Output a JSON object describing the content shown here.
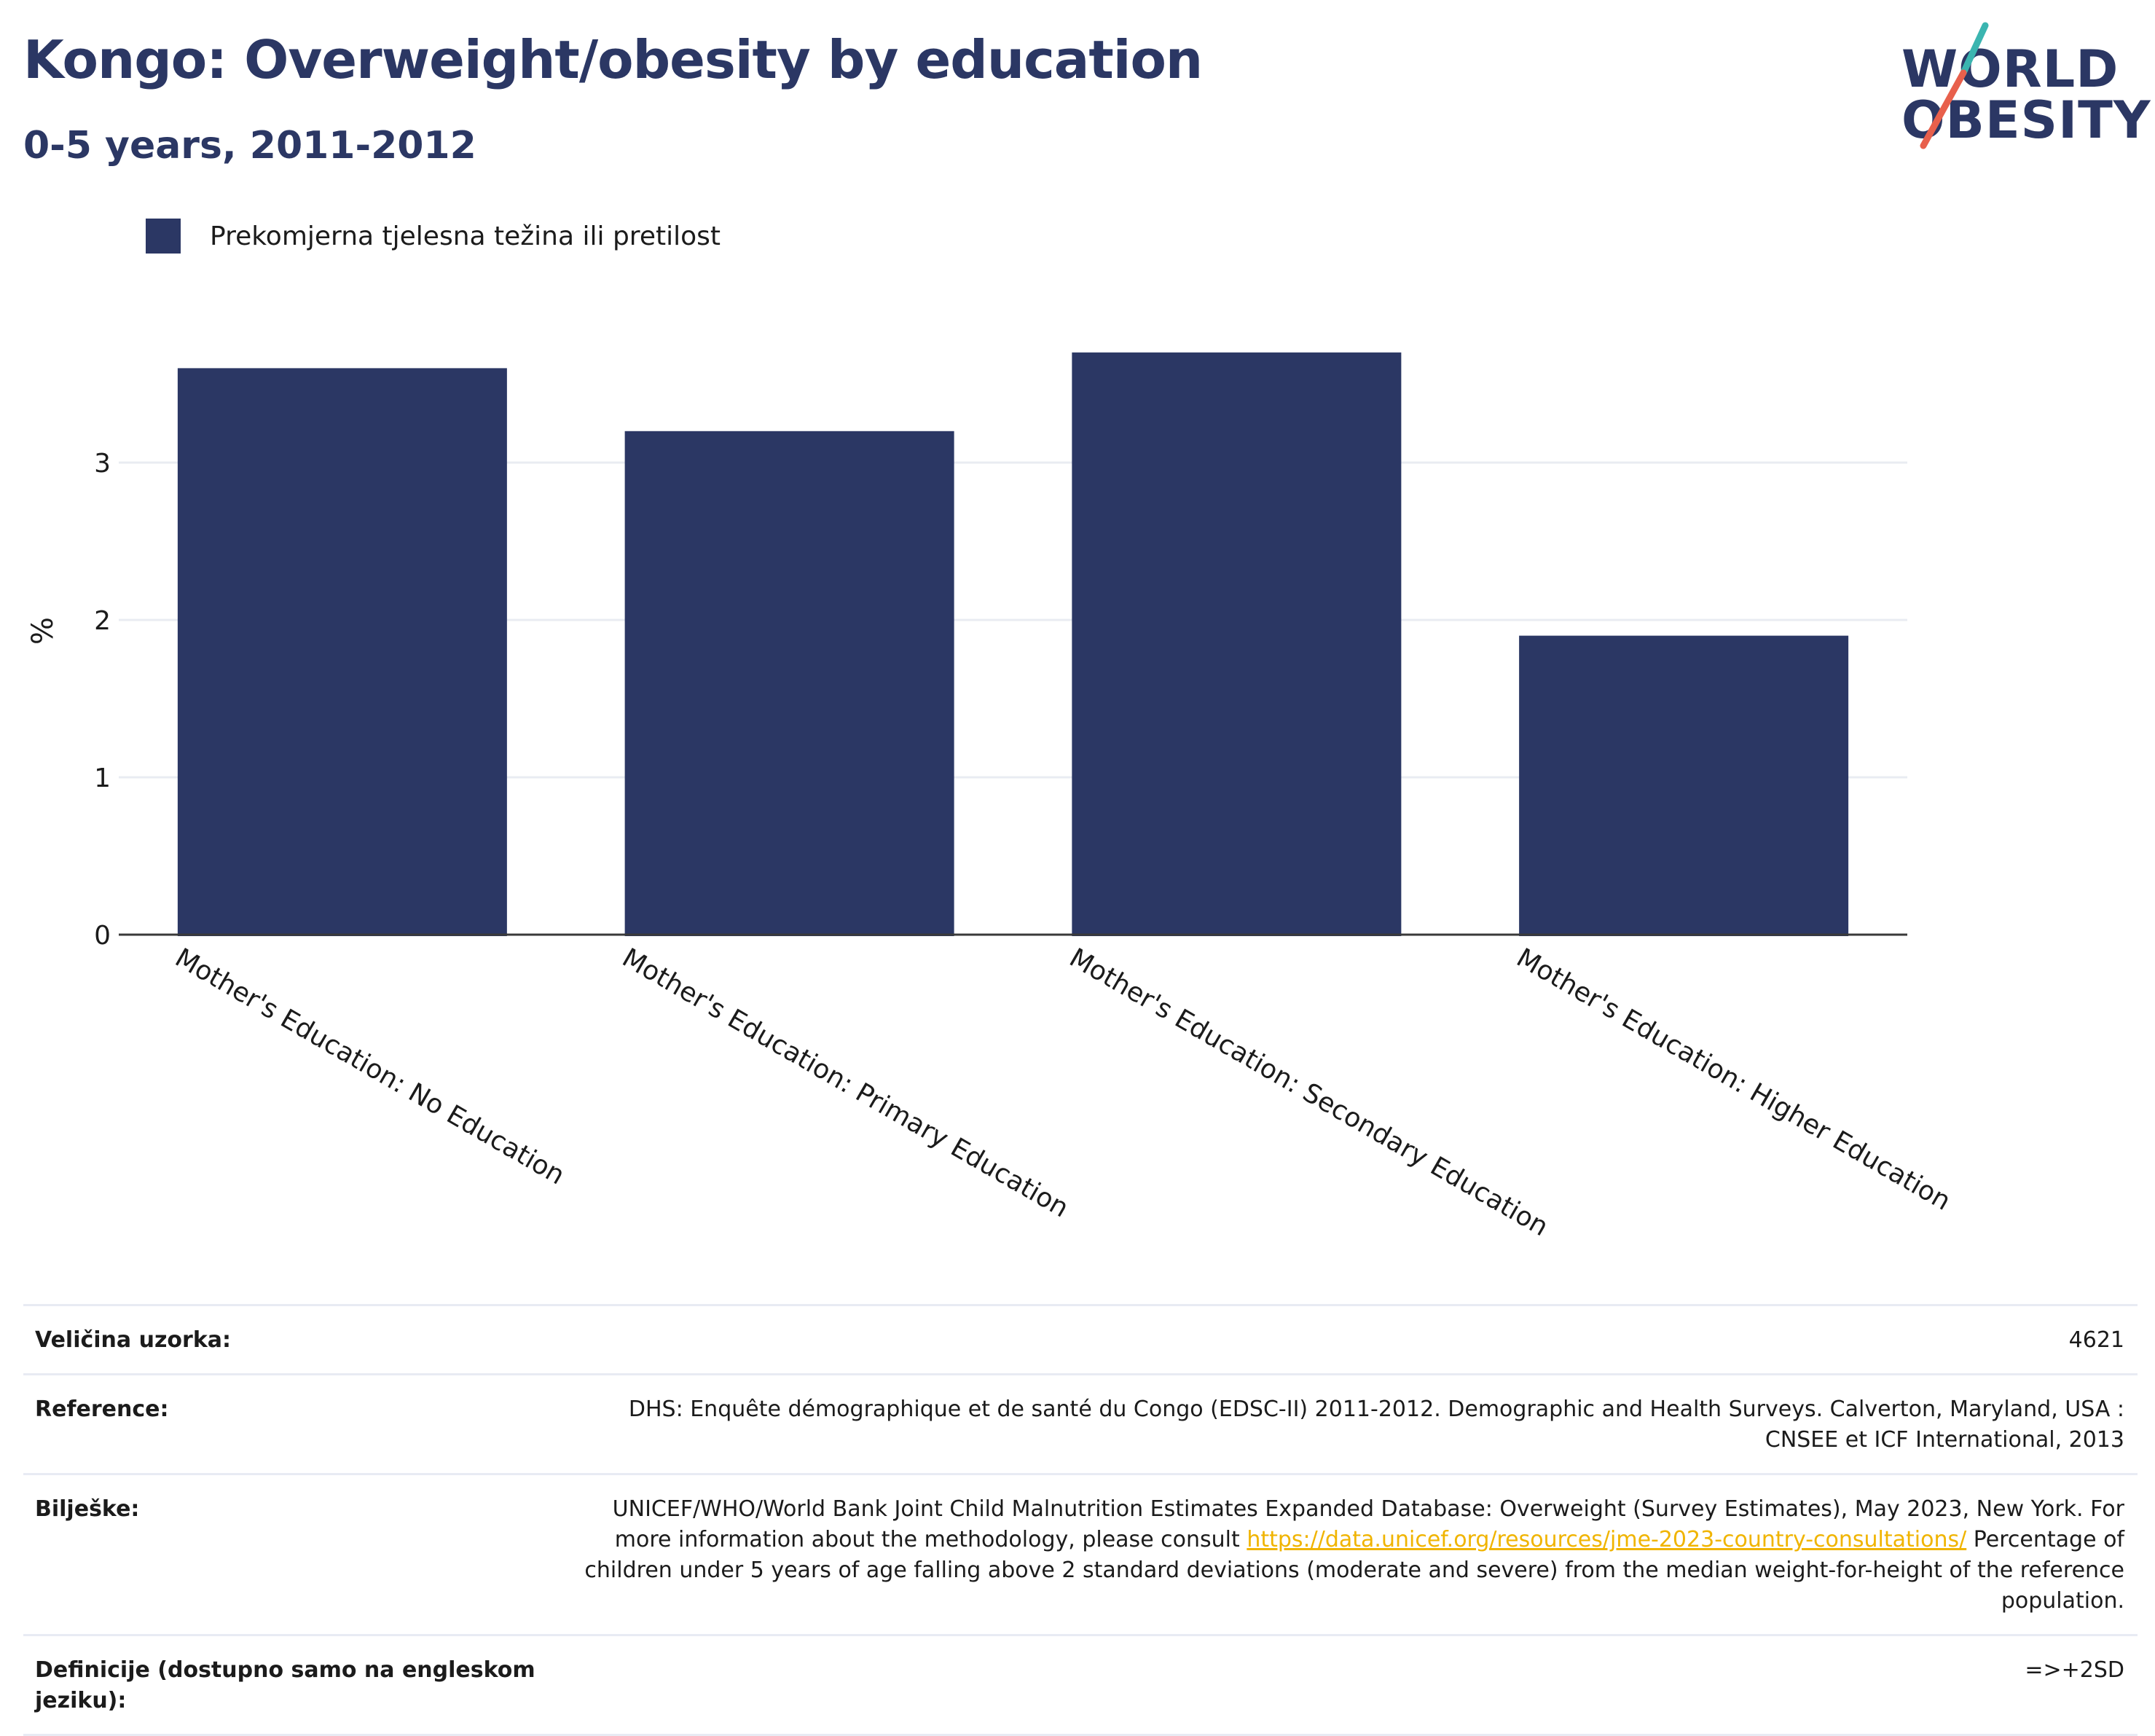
{
  "header": {
    "title": "Kongo: Overweight/obesity by education",
    "subtitle": "0-5 years, 2011-2012"
  },
  "logo": {
    "line1": "WORLD",
    "line2": "OBESITY"
  },
  "colors": {
    "bar": "#2b3764",
    "title": "#2b3764",
    "link": "#f0b400",
    "logo_teal": "#3bb5b0",
    "logo_red": "#e8604c"
  },
  "chart_data": {
    "type": "bar",
    "title": "Kongo: Overweight/obesity by education",
    "subtitle": "0-5 years, 2011-2012",
    "categories": [
      "Mother's Education: No Education",
      "Mother's Education: Primary Education",
      "Mother's Education: Secondary Education",
      "Mother's Education: Higher Education"
    ],
    "series": [
      {
        "name": "Prekomjerna tjelesna težina ili pretilost",
        "values": [
          3.6,
          3.2,
          3.7,
          1.9
        ]
      }
    ],
    "ylabel": "%",
    "ylim": [
      0,
      4
    ],
    "yticks": [
      0,
      1,
      2,
      3
    ],
    "grid": true,
    "legend": "top-left"
  },
  "table": {
    "rows": [
      {
        "label": "Veličina uzorka:",
        "value": "4621"
      },
      {
        "label": "Reference:",
        "value": "DHS: Enquête démographique et de santé du Congo (EDSC-II) 2011-2012. Demographic and Health Surveys. Calverton, Maryland, USA : CNSEE et ICF International, 2013"
      },
      {
        "label": "Bilješke:",
        "value_before": "UNICEF/WHO/World Bank Joint Child Malnutrition Estimates Expanded Database: Overweight (Survey Estimates), May 2023, New York. For more information about the methodology, please consult ",
        "link": "https://data.unicef.org/resources/jme-2023-country-consultations/",
        "value_after": " Percentage of children under 5 years of age falling above 2 standard deviations (moderate and severe) from the median weight-for-height of the reference population."
      },
      {
        "label": "Definicije (dostupno samo na engleskom jeziku):",
        "value": "=>+2SD"
      }
    ]
  }
}
